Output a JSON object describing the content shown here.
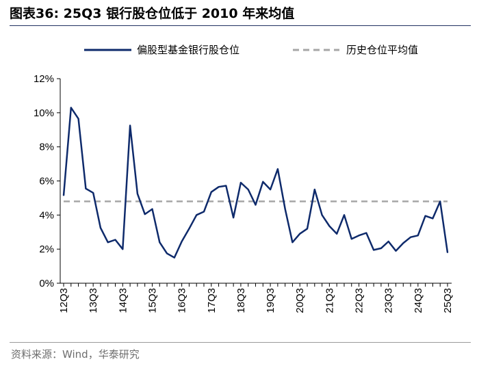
{
  "header": {
    "title": "图表36:  25Q3 银行股仓位低于 2010 年来均值"
  },
  "source": "资料来源：Wind，华泰研究",
  "colors": {
    "series": "#0e2a6b",
    "average": "#a6a6a6",
    "axis": "#000000"
  },
  "chart_data": {
    "type": "line",
    "title": "25Q3 银行股仓位低于 2010 年来均值",
    "xlabel": "",
    "ylabel": "",
    "ylim": [
      0,
      12
    ],
    "yticks": [
      "0%",
      "2%",
      "4%",
      "6%",
      "8%",
      "10%",
      "12%"
    ],
    "ytick_values": [
      0,
      2,
      4,
      6,
      8,
      10,
      12
    ],
    "legend_position": "top",
    "categories": [
      "12Q3",
      "12Q4",
      "13Q1",
      "13Q2",
      "13Q3",
      "13Q4",
      "14Q1",
      "14Q2",
      "14Q3",
      "14Q4",
      "15Q1",
      "15Q2",
      "15Q3",
      "15Q4",
      "16Q1",
      "16Q2",
      "16Q3",
      "16Q4",
      "17Q1",
      "17Q2",
      "17Q3",
      "17Q4",
      "18Q1",
      "18Q2",
      "18Q3",
      "18Q4",
      "19Q1",
      "19Q2",
      "19Q3",
      "19Q4",
      "20Q1",
      "20Q2",
      "20Q3",
      "20Q4",
      "21Q1",
      "21Q2",
      "21Q3",
      "21Q4",
      "22Q1",
      "22Q2",
      "22Q3",
      "22Q4",
      "23Q1",
      "23Q2",
      "23Q3",
      "23Q4",
      "24Q1",
      "24Q2",
      "24Q3",
      "24Q4",
      "25Q1",
      "25Q2",
      "25Q3"
    ],
    "xtick_labels": [
      "12Q3",
      "13Q3",
      "14Q3",
      "15Q3",
      "16Q3",
      "17Q3",
      "18Q3",
      "19Q3",
      "20Q3",
      "21Q3",
      "22Q3",
      "23Q3",
      "24Q3",
      "25Q3"
    ],
    "series": [
      {
        "name": "偏股型基金银行股仓位",
        "style": "solid",
        "values": [
          5.15,
          10.3,
          9.65,
          5.55,
          5.3,
          3.25,
          2.4,
          2.55,
          2.0,
          9.25,
          5.25,
          4.05,
          4.35,
          2.4,
          1.75,
          1.5,
          2.45,
          3.2,
          4.0,
          4.2,
          5.35,
          5.65,
          5.72,
          3.85,
          5.9,
          5.5,
          4.6,
          5.95,
          5.5,
          6.7,
          4.35,
          2.4,
          2.9,
          3.2,
          5.5,
          4.0,
          3.35,
          2.9,
          4.0,
          2.6,
          2.8,
          2.95,
          1.95,
          2.05,
          2.45,
          1.9,
          2.35,
          2.7,
          2.8,
          3.95,
          3.8,
          4.8,
          1.8
        ]
      },
      {
        "name": "历史仓位平均值",
        "style": "dashed",
        "values": [
          4.8,
          4.8,
          4.8,
          4.8,
          4.8,
          4.8,
          4.8,
          4.8,
          4.8,
          4.8,
          4.8,
          4.8,
          4.8,
          4.8,
          4.8,
          4.8,
          4.8,
          4.8,
          4.8,
          4.8,
          4.8,
          4.8,
          4.8,
          4.8,
          4.8,
          4.8,
          4.8,
          4.8,
          4.8,
          4.8,
          4.8,
          4.8,
          4.8,
          4.8,
          4.8,
          4.8,
          4.8,
          4.8,
          4.8,
          4.8,
          4.8,
          4.8,
          4.8,
          4.8,
          4.8,
          4.8,
          4.8,
          4.8,
          4.8,
          4.8,
          4.8,
          4.8,
          4.8
        ]
      }
    ]
  }
}
